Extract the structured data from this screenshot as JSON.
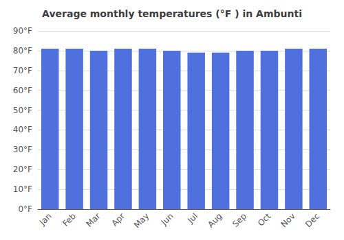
{
  "chart_data": {
    "type": "bar",
    "title": "Average monthly temperatures (°F ) in Ambunti",
    "categories": [
      "Jan",
      "Feb",
      "Mar",
      "Apr",
      "May",
      "Jun",
      "Jul",
      "Aug",
      "Sep",
      "Oct",
      "Nov",
      "Dec"
    ],
    "values": [
      81,
      81,
      80,
      81,
      81,
      80,
      79,
      79,
      80,
      80,
      81,
      81
    ],
    "ylim": [
      0,
      90
    ],
    "yticks": [
      {
        "value": 0,
        "label": "0°F"
      },
      {
        "value": 10,
        "label": "10°F"
      },
      {
        "value": 20,
        "label": "20°F"
      },
      {
        "value": 30,
        "label": "30°F"
      },
      {
        "value": 40,
        "label": "40°F"
      },
      {
        "value": 50,
        "label": "50°F"
      },
      {
        "value": 60,
        "label": "60°F"
      },
      {
        "value": 70,
        "label": "70°F"
      },
      {
        "value": 80,
        "label": "80°F"
      },
      {
        "value": 90,
        "label": "90°F"
      }
    ],
    "grid": true
  }
}
